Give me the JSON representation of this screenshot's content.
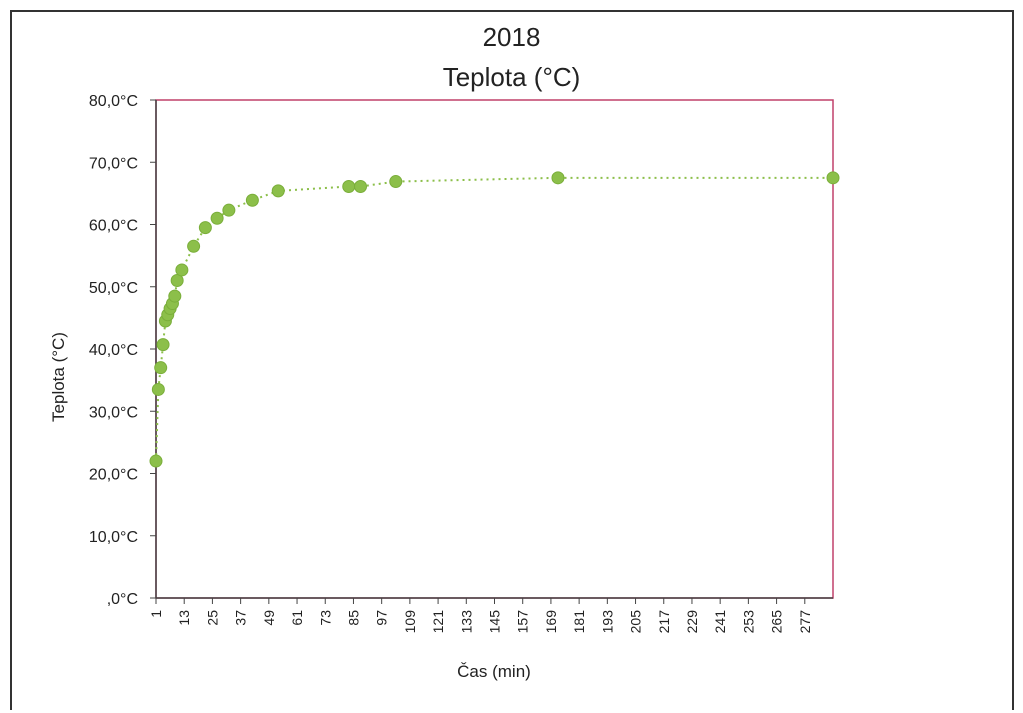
{
  "chart_data": {
    "type": "scatter",
    "title": "2018",
    "subtitle": "Teplota (°C)",
    "xlabel": "Čas (min)",
    "ylabel": "Teplota (°C)",
    "ylim": [
      0,
      80
    ],
    "xlim": [
      1,
      289
    ],
    "y_ticks": [
      {
        "value": 0,
        "label": ",0°C"
      },
      {
        "value": 10,
        "label": "10,0°C"
      },
      {
        "value": 20,
        "label": "20,0°C"
      },
      {
        "value": 30,
        "label": "30,0°C"
      },
      {
        "value": 40,
        "label": "40,0°C"
      },
      {
        "value": 50,
        "label": "50,0°C"
      },
      {
        "value": 60,
        "label": "60,0°C"
      },
      {
        "value": 70,
        "label": "70,0°C"
      },
      {
        "value": 80,
        "label": "80,0°C"
      }
    ],
    "x_ticks": [
      1,
      13,
      25,
      37,
      49,
      61,
      73,
      85,
      97,
      109,
      121,
      133,
      145,
      157,
      169,
      181,
      193,
      205,
      217,
      229,
      241,
      253,
      265,
      277
    ],
    "x_tick_labels": [
      "1",
      "13",
      "25",
      "37",
      "49",
      "61",
      "73",
      "85",
      "97",
      "109",
      "121",
      "133",
      "145",
      "157",
      "169",
      "181",
      "193",
      "205",
      "217",
      "229",
      "241",
      "253",
      "265",
      "277"
    ],
    "grid": false,
    "marker_color": "#8cbf4a",
    "line_color": "#8cbf4a",
    "plot_border_color": "#c0406a",
    "series": [
      {
        "values": [
          {
            "x": 1,
            "y": 22.0
          },
          {
            "x": 2,
            "y": 33.5
          },
          {
            "x": 3,
            "y": 37.0
          },
          {
            "x": 4,
            "y": 40.7
          },
          {
            "x": 5,
            "y": 44.5
          },
          {
            "x": 6,
            "y": 45.5
          },
          {
            "x": 7,
            "y": 46.5
          },
          {
            "x": 8,
            "y": 47.3
          },
          {
            "x": 9,
            "y": 48.5
          },
          {
            "x": 10,
            "y": 51.0
          },
          {
            "x": 12,
            "y": 52.7
          },
          {
            "x": 17,
            "y": 56.5
          },
          {
            "x": 22,
            "y": 59.5
          },
          {
            "x": 27,
            "y": 61.0
          },
          {
            "x": 32,
            "y": 62.3
          },
          {
            "x": 42,
            "y": 63.9
          },
          {
            "x": 53,
            "y": 65.4
          },
          {
            "x": 83,
            "y": 66.1
          },
          {
            "x": 88,
            "y": 66.1
          },
          {
            "x": 103,
            "y": 66.9
          },
          {
            "x": 172,
            "y": 67.5
          },
          {
            "x": 289,
            "y": 67.5
          }
        ]
      }
    ]
  }
}
